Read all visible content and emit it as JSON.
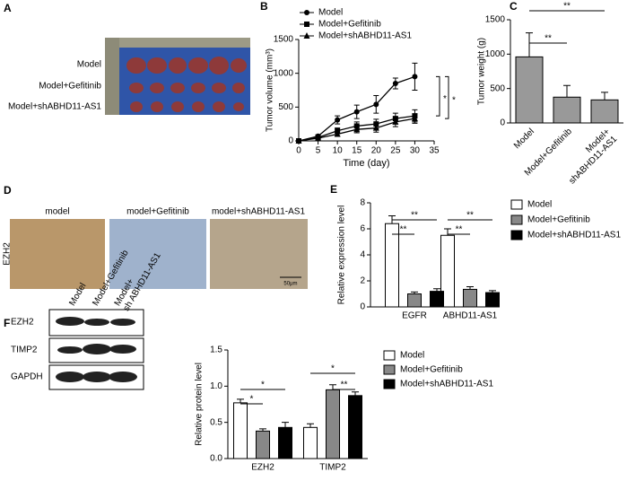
{
  "panels": {
    "letters": [
      "A",
      "B",
      "C",
      "D",
      "E",
      "F"
    ],
    "a": {
      "rows": [
        "Model",
        "Model+Gefitinib",
        "Model+shABHD11-AS1"
      ]
    },
    "d": {
      "columns": [
        "model",
        "model+Gefitinib",
        "model+shABHD11-AS1"
      ],
      "stain": "EZH2",
      "scale": "50μm"
    },
    "f_blot": {
      "columns": [
        "Model",
        "Model+Gefitinib",
        "Model+\nsh ABHD11-AS1"
      ],
      "rows": [
        "EZH2",
        "TIMP2",
        "GAPDH"
      ]
    }
  },
  "chart_data": [
    {
      "type": "line",
      "xlabel": "Time (day)",
      "ylabel": "Tumor volume (mm³)",
      "x": [
        0,
        5,
        10,
        15,
        20,
        25,
        30
      ],
      "xlim": [
        0,
        35
      ],
      "xticks": [
        0,
        5,
        10,
        15,
        20,
        25,
        30,
        35
      ],
      "ylim": [
        0,
        1500
      ],
      "yticks": [
        0,
        500,
        1000,
        1500
      ],
      "series": [
        {
          "name": "Model",
          "color": "#000000",
          "marker": "circle",
          "values": [
            0,
            70,
            310,
            430,
            540,
            850,
            950
          ],
          "errors": [
            0,
            20,
            60,
            100,
            130,
            80,
            200
          ]
        },
        {
          "name": "Model+Gefitinib",
          "color": "#000000",
          "marker": "square",
          "values": [
            0,
            50,
            150,
            220,
            250,
            330,
            370
          ],
          "errors": [
            0,
            15,
            40,
            60,
            70,
            80,
            90
          ]
        },
        {
          "name": "Model+shABHD11-AS1",
          "color": "#000000",
          "marker": "triangle",
          "values": [
            0,
            40,
            100,
            170,
            190,
            280,
            330
          ],
          "errors": [
            0,
            15,
            30,
            50,
            60,
            70,
            70
          ]
        }
      ],
      "annotations": [
        "*",
        "*"
      ]
    },
    {
      "type": "bar",
      "ylabel": "Tumor weight (g)",
      "categories": [
        "Model",
        "Model+Gefitinib",
        "Model+\nshABHD11-AS1"
      ],
      "values": [
        960,
        375,
        335
      ],
      "errors": [
        350,
        170,
        110
      ],
      "color": "#999999",
      "ylim": [
        0,
        1500
      ],
      "yticks": [
        0,
        500,
        1000,
        1500
      ],
      "annotations": [
        "**",
        "**"
      ]
    },
    {
      "type": "bar",
      "ylabel": "Relative expression level",
      "categories": [
        "EGFR",
        "ABHD11-AS1"
      ],
      "ylim": [
        0,
        8
      ],
      "yticks": [
        0,
        2,
        4,
        6,
        8
      ],
      "series": [
        {
          "name": "Model",
          "color": "#ffffff",
          "values": [
            6.4,
            5.5
          ],
          "errors": [
            0.6,
            0.5
          ]
        },
        {
          "name": "Model+Gefitinib",
          "color": "#888888",
          "values": [
            1.0,
            1.35
          ],
          "errors": [
            0.15,
            0.2
          ]
        },
        {
          "name": "Model+shABHD11-AS1",
          "color": "#000000",
          "values": [
            1.2,
            1.1
          ],
          "errors": [
            0.2,
            0.15
          ]
        }
      ],
      "annotations": [
        "**",
        "**",
        "**",
        "**"
      ]
    },
    {
      "type": "bar",
      "ylabel": "Relative protein level",
      "categories": [
        "EZH2",
        "TIMP2"
      ],
      "ylim": [
        0,
        1.5
      ],
      "yticks": [
        {
          "value": 0,
          "label": "0.0"
        },
        0.5,
        {
          "value": 1,
          "label": "1.0"
        },
        1.5
      ],
      "series": [
        {
          "name": "Model",
          "color": "#ffffff",
          "values": [
            0.77,
            0.43
          ],
          "errors": [
            0.05,
            0.05
          ]
        },
        {
          "name": "Model+Gefitinib",
          "color": "#888888",
          "values": [
            0.38,
            0.95
          ],
          "errors": [
            0.03,
            0.07
          ]
        },
        {
          "name": "Model+shABHD11-AS1",
          "color": "#000000",
          "values": [
            0.43,
            0.87
          ],
          "errors": [
            0.07,
            0.05
          ]
        }
      ],
      "annotations": [
        "*",
        "*",
        "*",
        "**"
      ]
    }
  ]
}
